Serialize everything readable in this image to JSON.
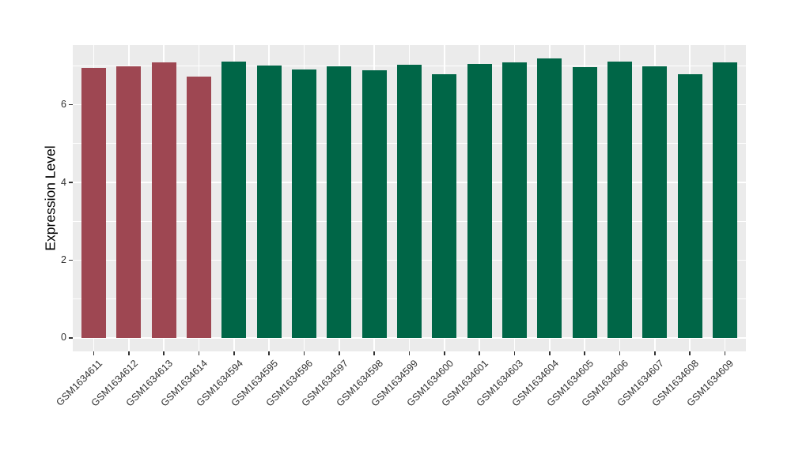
{
  "figure": {
    "background": "#FFFFFF",
    "panel_background": "#EBEBEB",
    "gridline_color": "#FFFFFF",
    "axis_text_color": "#303030",
    "axis_title_color": "#000000"
  },
  "chart_data": {
    "type": "bar",
    "title": "",
    "xlabel": "",
    "ylabel": "Expression Level",
    "ylim": [
      0,
      7.54
    ],
    "yticks": [
      0,
      2,
      4,
      6
    ],
    "minor_gridlines": [
      1,
      3,
      5,
      7
    ],
    "grid": "on",
    "legend": "none",
    "x_tick_angle": -45,
    "categories": [
      "GSM1634611",
      "GSM1634612",
      "GSM1634613",
      "GSM1634614",
      "GSM1634594",
      "GSM1634595",
      "GSM1634596",
      "GSM1634597",
      "GSM1634598",
      "GSM1634599",
      "GSM1634600",
      "GSM1634601",
      "GSM1634603",
      "GSM1634604",
      "GSM1634605",
      "GSM1634606",
      "GSM1634607",
      "GSM1634608",
      "GSM1634609"
    ],
    "values": [
      6.94,
      6.99,
      7.08,
      6.72,
      7.11,
      7.01,
      6.9,
      6.99,
      6.88,
      7.02,
      6.79,
      7.04,
      7.08,
      7.19,
      6.97,
      7.1,
      6.99,
      6.79,
      7.08
    ],
    "groups": [
      "highlight",
      "highlight",
      "highlight",
      "highlight",
      "normal",
      "normal",
      "normal",
      "normal",
      "normal",
      "normal",
      "normal",
      "normal",
      "normal",
      "normal",
      "normal",
      "normal",
      "normal",
      "normal",
      "normal"
    ],
    "group_colors": {
      "highlight": "#9E4752",
      "normal": "#006647"
    }
  }
}
